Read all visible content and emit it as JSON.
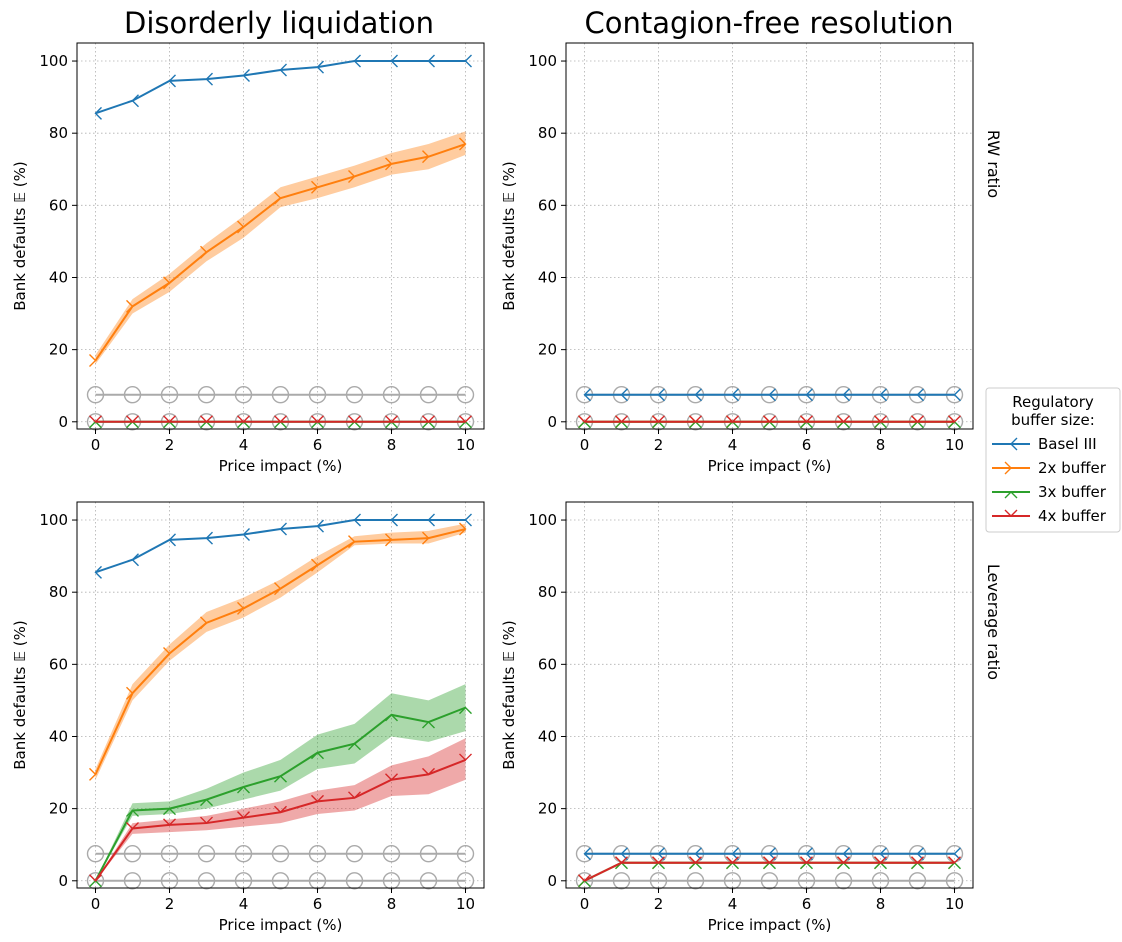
{
  "figure": {
    "column_titles": [
      "Disorderly liquidation",
      "Contagion-free resolution"
    ],
    "row_labels": [
      "RW ratio",
      "Leverage ratio"
    ],
    "xlabel": "Price impact (%)",
    "ylabel": "Bank defaults 𝔼 (%)",
    "legend": {
      "title_line1": "Regulatory",
      "title_line2": "buffer size:",
      "placement": "right-middle",
      "entries": [
        {
          "name": "Basel III",
          "color": "#1f77b4",
          "marker": "left-tick"
        },
        {
          "name": "2x buffer",
          "color": "#ff7f0e",
          "marker": "right-tick"
        },
        {
          "name": "3x buffer",
          "color": "#2ca02c",
          "marker": "up-tick"
        },
        {
          "name": "4x buffer",
          "color": "#d62728",
          "marker": "down-tick"
        }
      ]
    },
    "reference_line_color": "#aaaaaa"
  },
  "chart_data": [
    {
      "type": "line",
      "panel": "top-left",
      "title": "Disorderly liquidation",
      "xlabel": "Price impact (%)",
      "ylabel": "Bank defaults 𝔼 (%)",
      "x": [
        0,
        1,
        2,
        3,
        4,
        5,
        6,
        7,
        8,
        9,
        10
      ],
      "xlim": [
        -0.5,
        10.5
      ],
      "ylim": [
        -2,
        105
      ],
      "xticks": [
        0,
        2,
        4,
        6,
        8,
        10
      ],
      "yticks": [
        0,
        20,
        40,
        60,
        80,
        100
      ],
      "grid": true,
      "series": [
        {
          "name": "Basel III",
          "values": [
            85.5,
            89,
            94.5,
            95,
            96,
            97.5,
            98.3,
            100,
            100,
            100,
            100
          ]
        },
        {
          "name": "2x buffer",
          "values": [
            17,
            32,
            38.5,
            47,
            54,
            62,
            65,
            68,
            71.5,
            73.5,
            77
          ],
          "band_low": [
            16,
            30,
            36,
            44.5,
            51,
            59.5,
            62,
            65,
            68.5,
            70,
            74
          ],
          "band_high": [
            18.5,
            34,
            41,
            49.5,
            57,
            65,
            68,
            71,
            74.5,
            77,
            80.5
          ]
        },
        {
          "name": "3x buffer",
          "values": [
            0,
            0,
            0,
            0,
            0,
            0,
            0,
            0,
            0,
            0,
            0
          ]
        },
        {
          "name": "4x buffer",
          "values": [
            0,
            0,
            0,
            0,
            0,
            0,
            0,
            0,
            0,
            0,
            0
          ]
        }
      ],
      "reference": {
        "upper": 7.5,
        "lower": 0
      }
    },
    {
      "type": "line",
      "panel": "top-right",
      "title": "Contagion-free resolution",
      "xlabel": "Price impact (%)",
      "ylabel": "Bank defaults 𝔼 (%)",
      "row_label": "RW ratio",
      "x": [
        0,
        1,
        2,
        3,
        4,
        5,
        6,
        7,
        8,
        9,
        10
      ],
      "xlim": [
        -0.5,
        10.5
      ],
      "ylim": [
        -2,
        105
      ],
      "xticks": [
        0,
        2,
        4,
        6,
        8,
        10
      ],
      "yticks": [
        0,
        20,
        40,
        60,
        80,
        100
      ],
      "grid": true,
      "series": [
        {
          "name": "Basel III",
          "values": [
            7.5,
            7.5,
            7.5,
            7.5,
            7.5,
            7.5,
            7.5,
            7.5,
            7.5,
            7.5,
            7.5
          ]
        },
        {
          "name": "2x buffer",
          "values": [
            0,
            0,
            0,
            0,
            0,
            0,
            0,
            0,
            0,
            0,
            0
          ]
        },
        {
          "name": "3x buffer",
          "values": [
            0,
            0,
            0,
            0,
            0,
            0,
            0,
            0,
            0,
            0,
            0
          ]
        },
        {
          "name": "4x buffer",
          "values": [
            0,
            0,
            0,
            0,
            0,
            0,
            0,
            0,
            0,
            0,
            0
          ]
        }
      ],
      "reference": {
        "upper": 7.5,
        "lower": 0
      }
    },
    {
      "type": "line",
      "panel": "bottom-left",
      "xlabel": "Price impact (%)",
      "ylabel": "Bank defaults 𝔼 (%)",
      "x": [
        0,
        1,
        2,
        3,
        4,
        5,
        6,
        7,
        8,
        9,
        10
      ],
      "xlim": [
        -0.5,
        10.5
      ],
      "ylim": [
        -2,
        105
      ],
      "xticks": [
        0,
        2,
        4,
        6,
        8,
        10
      ],
      "yticks": [
        0,
        20,
        40,
        60,
        80,
        100
      ],
      "grid": true,
      "series": [
        {
          "name": "Basel III",
          "values": [
            85.5,
            89,
            94.5,
            95,
            96,
            97.5,
            98.3,
            100,
            100,
            100,
            100
          ]
        },
        {
          "name": "2x buffer",
          "values": [
            29.5,
            52,
            63,
            71.5,
            75.5,
            81,
            87.5,
            94,
            94.5,
            95,
            97.5
          ],
          "band_low": [
            28,
            50,
            61,
            69,
            73,
            78.5,
            85.5,
            93,
            93.5,
            93.5,
            96.5
          ],
          "band_high": [
            31,
            54.5,
            65.5,
            74.5,
            78.5,
            83.5,
            90,
            95.5,
            96.5,
            97,
            99
          ]
        },
        {
          "name": "3x buffer",
          "values": [
            0,
            19.5,
            20,
            22.5,
            26,
            29,
            35.5,
            38,
            46,
            44,
            48
          ],
          "band_low": [
            0,
            18,
            18.5,
            20,
            22.5,
            25,
            31,
            32.5,
            40,
            38.5,
            41.5
          ],
          "band_high": [
            0,
            21.5,
            22,
            25.5,
            30,
            33.5,
            40.5,
            43.5,
            52,
            50,
            54.5
          ]
        },
        {
          "name": "4x buffer",
          "values": [
            0,
            14.5,
            15.5,
            16,
            17.5,
            19,
            22,
            23,
            28,
            29.5,
            33.5
          ],
          "band_low": [
            0,
            13,
            13.5,
            14,
            15,
            16,
            18.5,
            19.5,
            23.5,
            24,
            28
          ],
          "band_high": [
            0,
            16,
            17,
            18,
            20,
            22,
            25,
            26.5,
            32,
            34.5,
            39.5
          ]
        }
      ],
      "reference": {
        "upper": 7.5,
        "lower": 0
      }
    },
    {
      "type": "line",
      "panel": "bottom-right",
      "xlabel": "Price impact (%)",
      "ylabel": "Bank defaults 𝔼 (%)",
      "row_label": "Leverage ratio",
      "x": [
        0,
        1,
        2,
        3,
        4,
        5,
        6,
        7,
        8,
        9,
        10
      ],
      "xlim": [
        -0.5,
        10.5
      ],
      "ylim": [
        -2,
        105
      ],
      "xticks": [
        0,
        2,
        4,
        6,
        8,
        10
      ],
      "yticks": [
        0,
        20,
        40,
        60,
        80,
        100
      ],
      "grid": true,
      "series": [
        {
          "name": "Basel III",
          "values": [
            7.5,
            7.5,
            7.5,
            7.5,
            7.5,
            7.5,
            7.5,
            7.5,
            7.5,
            7.5,
            7.5
          ]
        },
        {
          "name": "2x buffer",
          "values": [
            0,
            5,
            5,
            5,
            5,
            5,
            5,
            5,
            5,
            5,
            5
          ]
        },
        {
          "name": "3x buffer",
          "values": [
            0,
            5,
            5,
            5,
            5,
            5,
            5,
            5,
            5,
            5,
            5
          ]
        },
        {
          "name": "4x buffer",
          "values": [
            0,
            5,
            5,
            5,
            5,
            5,
            5,
            5,
            5,
            5,
            5
          ]
        }
      ],
      "reference": {
        "upper": 7.5,
        "lower": 0
      }
    }
  ]
}
